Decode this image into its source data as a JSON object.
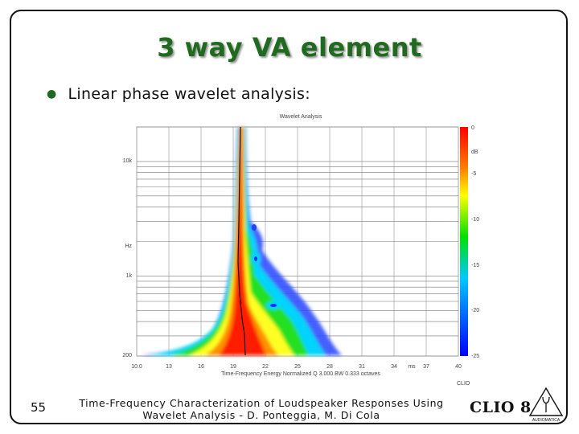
{
  "slide": {
    "title": "3 way VA element",
    "bullet": "Linear phase wavelet analysis:",
    "page_number": "55",
    "footer_line1": "Time-Frequency Characterization of Loudspeaker Responses Using",
    "footer_line2": "Wavelet Analysis - D. Ponteggia, M. Di Cola",
    "logo_text": "CLIO 8",
    "logo_subtext": "AUDIOMATICA",
    "accent_color": "#1f6a1f"
  },
  "chart_data": {
    "type": "heatmap",
    "title": "Wavelet Analysis",
    "xlabel": "Time-Frequency Energy  Normalized  Q 3.000 BW 0.333 octaves",
    "x_unit": "ms",
    "x_ticks": [
      "10.0",
      "13",
      "16",
      "19",
      "22",
      "25",
      "28",
      "31",
      "34",
      "37",
      "40"
    ],
    "xlim": [
      10,
      40
    ],
    "y_ticks": [
      "10k",
      "Hz",
      "1k",
      "200"
    ],
    "y_scale": "log",
    "ylim": [
      200,
      20000
    ],
    "colorbar_label": "dB",
    "colorbar_ticks": [
      "0",
      "-5",
      "-10",
      "-15",
      "-20",
      "-25"
    ],
    "colorbar_range": [
      -25,
      0
    ],
    "brand_label": "CLIO",
    "colormap": [
      "#0000ff",
      "#00c8ff",
      "#00e000",
      "#ffff00",
      "#ff8000",
      "#ff0000"
    ],
    "grid": true
  }
}
